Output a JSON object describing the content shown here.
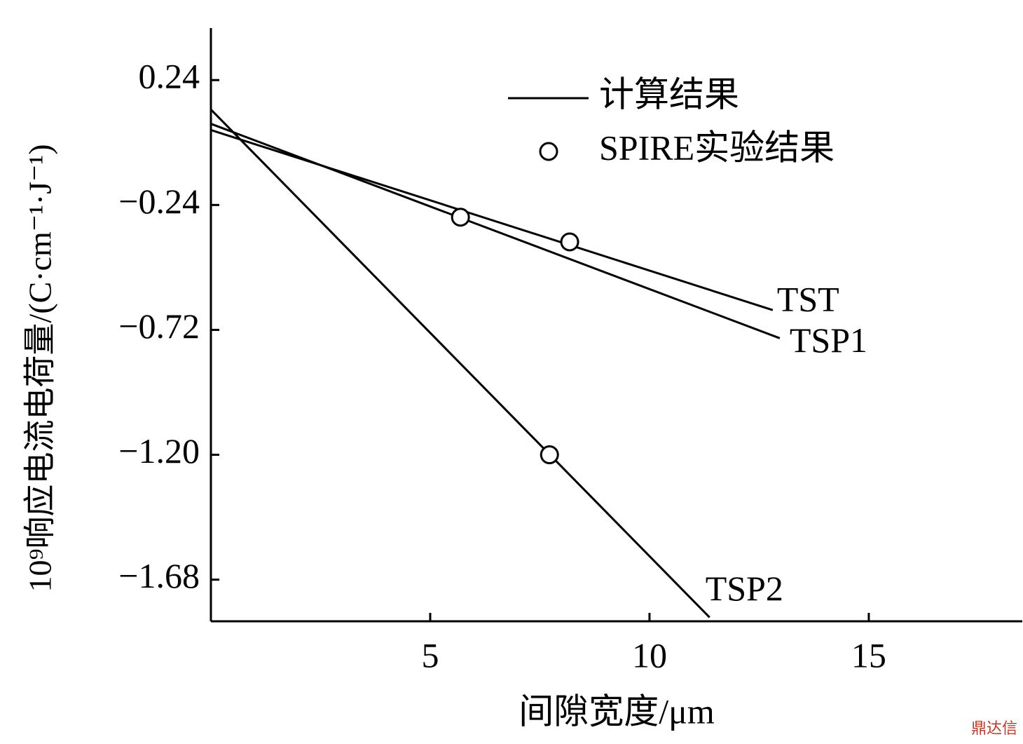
{
  "chart_data": {
    "type": "line",
    "xlabel": "间隙宽度/μm",
    "ylabel": "10⁹响应电流电荷量/(C·cm⁻¹·J⁻¹)",
    "xlim": [
      0,
      18.5
    ],
    "ylim": [
      -1.84,
      0.44
    ],
    "xticks": [
      5,
      10,
      15
    ],
    "yticks": [
      0.24,
      {
        "value": -0.24,
        "label": "−0.24"
      },
      {
        "value": -0.72,
        "label": "−0.72"
      },
      {
        "value": -1.2,
        "label": "−1.20"
      },
      {
        "value": -1.68,
        "label": "−1.68"
      }
    ],
    "color": "#000000",
    "legend": [
      {
        "label": "计算结果",
        "marker": "line"
      },
      {
        "label": "SPIRE实验结果",
        "marker": "circle"
      }
    ],
    "lines": [
      {
        "label": "TST",
        "x": [
          0,
          12.81
        ],
        "values": [
          0.048,
          -0.644
        ]
      },
      {
        "label": "TSP1",
        "x": [
          0,
          12.97
        ],
        "values": [
          0.072,
          -0.752
        ]
      },
      {
        "label": "TSP2",
        "x": [
          0,
          11.37
        ],
        "values": [
          0.127,
          -1.825
        ]
      }
    ],
    "points": {
      "x": [
        5.69,
        8.18,
        7.72
      ],
      "values": [
        -0.287,
        -0.382,
        -1.2
      ]
    },
    "watermark": "鼎达信"
  }
}
